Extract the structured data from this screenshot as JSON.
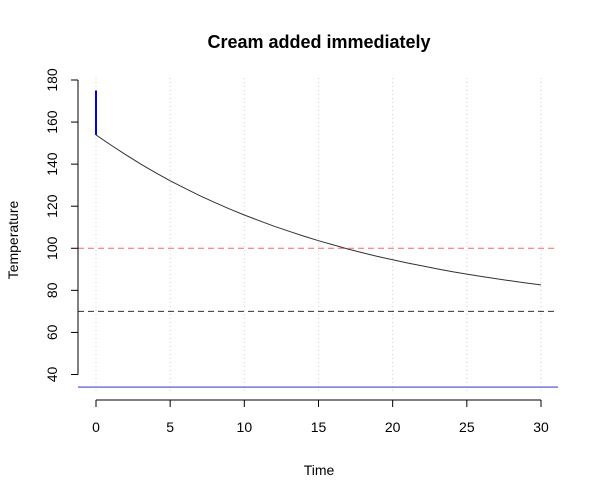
{
  "chart_data": {
    "type": "line",
    "title": "Cream added immediately",
    "xlabel": "Time",
    "ylabel": "Temperature",
    "xlim": [
      0,
      30
    ],
    "ylim": [
      35,
      180
    ],
    "x_ticks": [
      0,
      5,
      10,
      15,
      20,
      25,
      30
    ],
    "y_ticks": [
      40,
      60,
      80,
      100,
      120,
      140,
      160,
      180
    ],
    "grid": "vertical dotted at x ticks",
    "series": [
      {
        "type": "line",
        "color": "#333333",
        "x": [
          0,
          1,
          2,
          3,
          4,
          5,
          6,
          7,
          8,
          9,
          10,
          11,
          12,
          13,
          14,
          15,
          16,
          17,
          18,
          19,
          20,
          21,
          22,
          23,
          24,
          25,
          26,
          27,
          28,
          29,
          30
        ],
        "y": [
          153.9,
          149.1,
          144.5,
          140.1,
          136.0,
          132.1,
          128.5,
          125.0,
          121.8,
          118.7,
          115.8,
          113.1,
          110.5,
          108.1,
          105.8,
          103.6,
          101.6,
          99.6,
          97.8,
          96.1,
          94.5,
          93.0,
          91.6,
          90.2,
          88.9,
          87.7,
          86.6,
          85.5,
          84.5,
          83.5,
          82.6
        ]
      },
      {
        "type": "segment",
        "color": "#0000ee",
        "x": [
          0,
          0
        ],
        "y": [
          175,
          153.9
        ]
      }
    ],
    "reference_lines": [
      {
        "orientation": "horizontal",
        "value": 100,
        "color": "#ff6666",
        "style": "dashed"
      },
      {
        "orientation": "horizontal",
        "value": 70,
        "color": "#333333",
        "style": "dashed"
      },
      {
        "orientation": "horizontal",
        "value": 34,
        "color": "#7777dd",
        "style": "solid"
      }
    ]
  }
}
